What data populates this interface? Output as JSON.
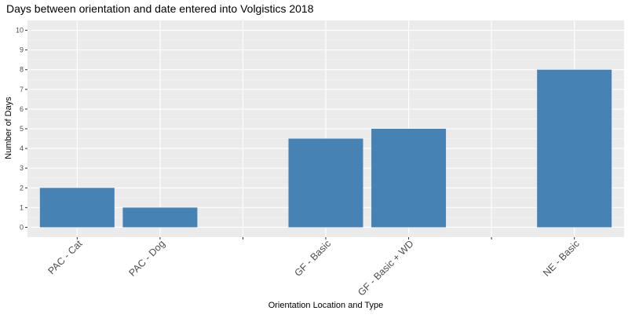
{
  "chart_data": {
    "type": "bar",
    "title": "Days between orientation and date entered into Volgistics 2018",
    "xlabel": "Orientation Location and Type",
    "ylabel": "Number of Days",
    "categories": [
      "PAC - Cat",
      "PAC - Dog",
      "",
      "GF - Basic",
      "GF - Basic + WD",
      "",
      "NE - Basic"
    ],
    "values": [
      2,
      1,
      null,
      4.5,
      5,
      null,
      8
    ],
    "ylim": [
      -0.5,
      10.5
    ],
    "yticks": [
      0,
      1,
      2,
      3,
      4,
      5,
      6,
      7,
      8,
      9,
      10
    ],
    "grid": true,
    "legend": "none",
    "colors": {
      "bar": "#4682B4",
      "panel": "#EBEBEB",
      "grid_major": "#FFFFFF",
      "tick_text": "#4D4D4D"
    }
  }
}
